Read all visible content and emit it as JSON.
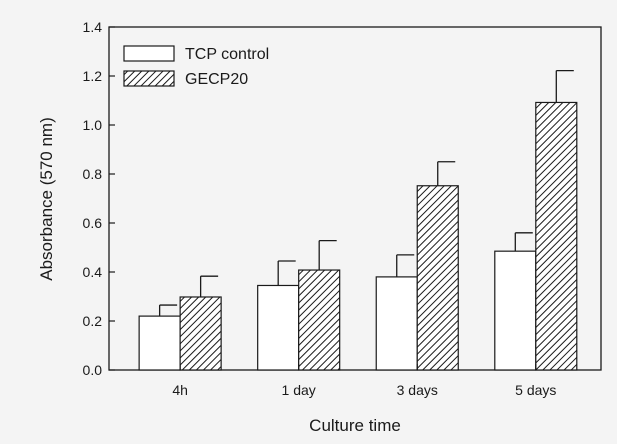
{
  "chart_data": {
    "type": "bar",
    "categories": [
      "4h",
      "1 day",
      "3 days",
      "5 days"
    ],
    "series": [
      {
        "name": "TCP control",
        "values": [
          0.22,
          0.345,
          0.38,
          0.485
        ],
        "errors": [
          0.045,
          0.1,
          0.09,
          0.075
        ],
        "fill": "open"
      },
      {
        "name": "GECP20",
        "values": [
          0.298,
          0.408,
          0.752,
          1.092
        ],
        "errors": [
          0.085,
          0.12,
          0.098,
          0.13
        ],
        "fill": "hatched"
      }
    ],
    "xlabel": "Culture time",
    "ylabel": "Absorbance (570 nm)",
    "ylim": [
      0.0,
      1.4
    ],
    "yticks": [
      "0.0",
      "0.2",
      "0.4",
      "0.6",
      "0.8",
      "1.0",
      "1.2",
      "1.4"
    ],
    "grid": false,
    "legend_position": "top-left",
    "colors": {
      "background": "#f4f4f4",
      "bar_outline": "#1a1a1a",
      "open_fill": "#ffffff",
      "hatch": "#1a1a1a"
    }
  }
}
